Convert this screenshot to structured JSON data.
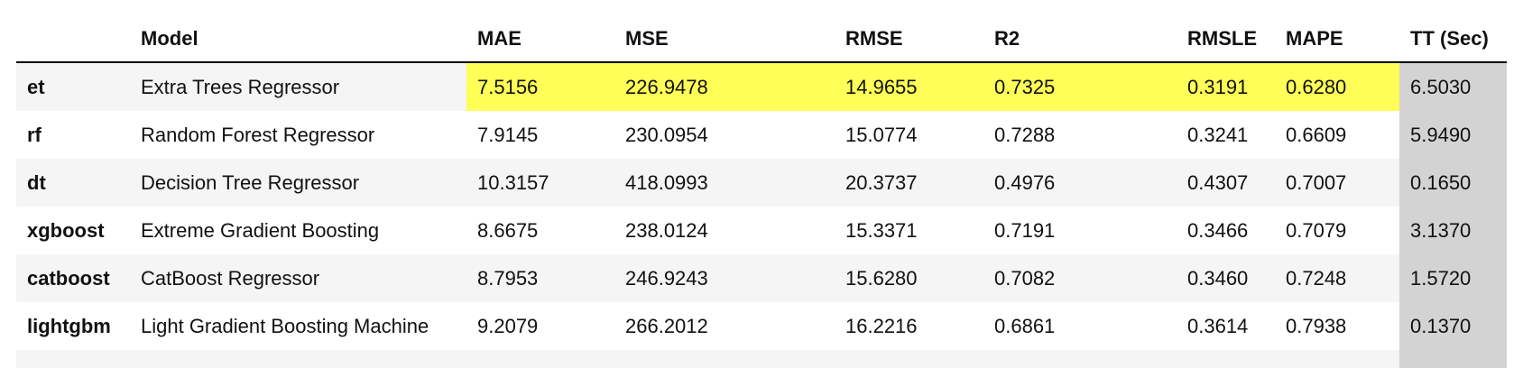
{
  "table": {
    "columns": [
      "",
      "Model",
      "MAE",
      "MSE",
      "RMSE",
      "R2",
      "RMSLE",
      "MAPE",
      "TT (Sec)"
    ],
    "rows": [
      {
        "index": "et",
        "model": "Extra Trees Regressor",
        "mae": "7.5156",
        "mse": "226.9478",
        "rmse": "14.9655",
        "r2": "0.7325",
        "rmsle": "0.3191",
        "mape": "0.6280",
        "tt": "6.5030"
      },
      {
        "index": "rf",
        "model": "Random Forest Regressor",
        "mae": "7.9145",
        "mse": "230.0954",
        "rmse": "15.0774",
        "r2": "0.7288",
        "rmsle": "0.3241",
        "mape": "0.6609",
        "tt": "5.9490"
      },
      {
        "index": "dt",
        "model": "Decision Tree Regressor",
        "mae": "10.3157",
        "mse": "418.0993",
        "rmse": "20.3737",
        "r2": "0.4976",
        "rmsle": "0.4307",
        "mape": "0.7007",
        "tt": "0.1650"
      },
      {
        "index": "xgboost",
        "model": "Extreme Gradient Boosting",
        "mae": "8.6675",
        "mse": "238.0124",
        "rmse": "15.3371",
        "r2": "0.7191",
        "rmsle": "0.3466",
        "mape": "0.7079",
        "tt": "3.1370"
      },
      {
        "index": "catboost",
        "model": "CatBoost Regressor",
        "mae": "8.7953",
        "mse": "246.9243",
        "rmse": "15.6280",
        "r2": "0.7082",
        "rmsle": "0.3460",
        "mape": "0.7248",
        "tt": "1.5720"
      },
      {
        "index": "lightgbm",
        "model": "Light Gradient Boosting Machine",
        "mae": "9.2079",
        "mse": "266.2012",
        "rmse": "16.2216",
        "r2": "0.6861",
        "rmsle": "0.3614",
        "mape": "0.7938",
        "tt": "0.1370"
      }
    ]
  },
  "colors": {
    "highlight": "#ffff57",
    "time_column": "#d3d3d3",
    "row_stripe": "#f5f5f5"
  }
}
